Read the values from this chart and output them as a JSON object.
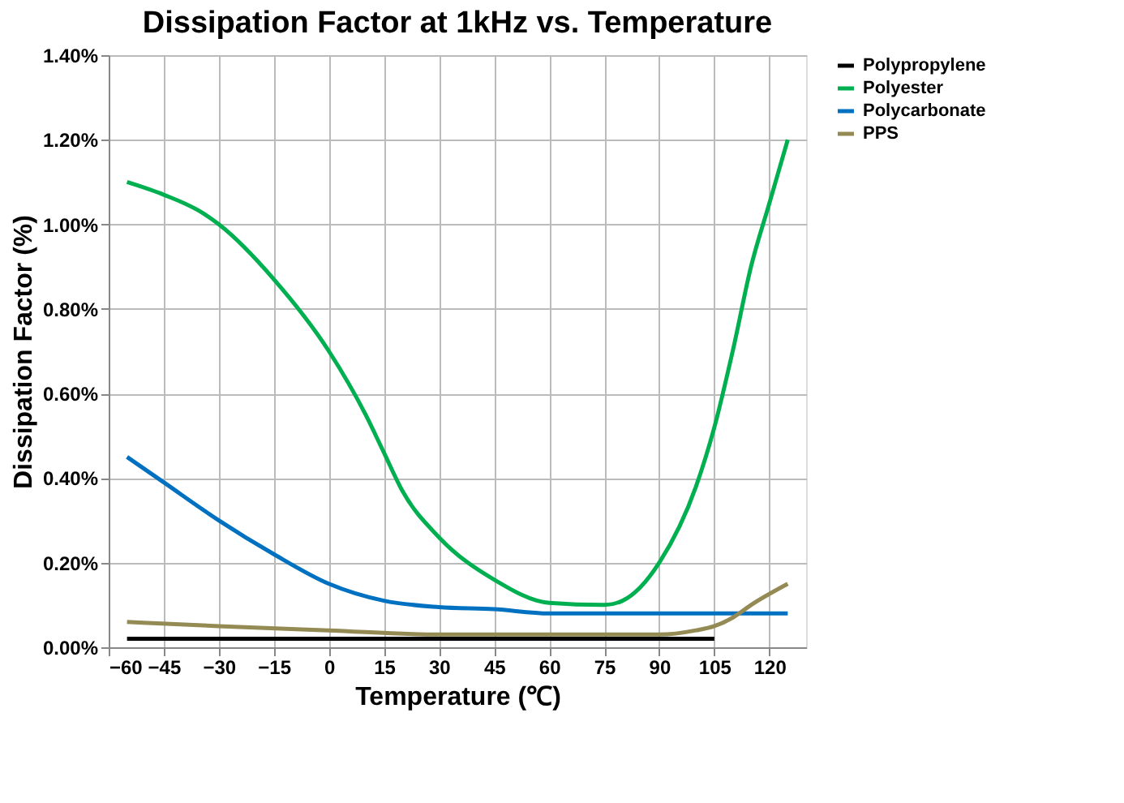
{
  "chart_data": {
    "type": "line",
    "title": "Dissipation Factor at 1kHz vs. Temperature",
    "xlabel": "Temperature (℃)",
    "ylabel": "Dissipation Factor (%)",
    "xlim": [
      -60,
      130
    ],
    "xticks": [
      -60,
      -45,
      -30,
      -15,
      0,
      15,
      30,
      45,
      60,
      75,
      90,
      105,
      120
    ],
    "ylim": [
      0,
      1.4
    ],
    "yticks": [
      {
        "value": 0,
        "label": "0.00%"
      },
      {
        "value": 0.2,
        "label": "0.20%"
      },
      {
        "value": 0.4,
        "label": "0.40%"
      },
      {
        "value": 0.6,
        "label": "0.60%"
      },
      {
        "value": 0.8,
        "label": "0.80%"
      },
      {
        "value": 1.0,
        "label": "1.00%"
      },
      {
        "value": 1.2,
        "label": "1.20%"
      },
      {
        "value": 1.4,
        "label": "1.40%"
      }
    ],
    "grid": true,
    "legend": "right",
    "marker": "none",
    "line_style": "solid",
    "series": [
      {
        "name": "Polypropylene",
        "color": "#000000",
        "x": [
          -55,
          105
        ],
        "values": [
          0.02,
          0.02
        ]
      },
      {
        "name": "Polyester",
        "color": "#00b050",
        "x": [
          -55,
          -45,
          -35,
          -30,
          -15,
          0,
          10,
          15,
          20,
          30,
          45,
          60,
          75,
          80,
          90,
          100,
          105,
          110,
          115,
          120,
          125
        ],
        "values": [
          1.1,
          1.07,
          1.03,
          1.0,
          0.87,
          0.7,
          0.55,
          0.46,
          0.37,
          0.26,
          0.16,
          0.105,
          0.1,
          0.11,
          0.2,
          0.38,
          0.52,
          0.7,
          0.9,
          1.05,
          1.2
        ]
      },
      {
        "name": "Polycarbonate",
        "color": "#0070c0",
        "x": [
          -55,
          -45,
          -30,
          -15,
          0,
          15,
          30,
          45,
          60,
          75,
          90,
          105,
          125
        ],
        "values": [
          0.45,
          0.39,
          0.3,
          0.22,
          0.15,
          0.11,
          0.095,
          0.09,
          0.08,
          0.08,
          0.08,
          0.08,
          0.08
        ]
      },
      {
        "name": "PPS",
        "color": "#948a54",
        "x": [
          -55,
          -30,
          0,
          30,
          60,
          90,
          100,
          105,
          110,
          115,
          125
        ],
        "values": [
          0.06,
          0.05,
          0.04,
          0.03,
          0.03,
          0.03,
          0.04,
          0.05,
          0.07,
          0.1,
          0.15
        ]
      }
    ]
  }
}
